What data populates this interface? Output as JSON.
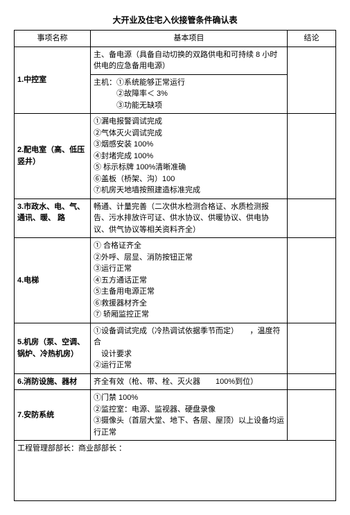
{
  "title": "大开业及住宅入伙接管条件确认表",
  "headers": {
    "col1": "事项名称",
    "col2": "基本项目",
    "col3": "结论"
  },
  "rows": [
    {
      "name": "1.中控室",
      "bold": true,
      "cells": [
        "主、备电源（具备自动切换的双路供电和可持续 8 小时供电的应急备用电源）",
        "主机：①系统能够正常运行\n　　　②故障率＜ 3%\n　　　③功能无缺项"
      ]
    },
    {
      "name": "2.配电室（高、低压 竖井）",
      "bold": true,
      "cells": [
        "①漏电报警调试完成\n②气体灭火调试完成\n③烟感安装 100%\n④封堵完成 100%\n⑤ 标示标牌 100%清晰准确\n⑥盖板（桥架、沟）100\n⑦机房天地墙按照建造标准完成"
      ]
    },
    {
      "name": "3.市政水、电、气、通讯、暖、 路",
      "bold": true,
      "cells": [
        "畅通、计量完善（二次供水检测合格证、水质检测报 告、污水排放许可证、供水协议、供暖协议、供电协 议、供气协议等相关资料齐全）"
      ]
    },
    {
      "name": "4.电梯",
      "bold": true,
      "cells": [
        "① 合格证齐全\n②外呼、层显、消防按钮正常\n③运行正常\n④五方通话正常\n⑤主备用电源正常\n⑥救援器材齐全\n⑦ 轿厢监控正常"
      ]
    },
    {
      "name": "5.机房（泵、空调、锅炉、冷热机房）",
      "bold": true,
      "cells": [
        "①设备调试完成（冷热调试依据季节而定）　　，温度符合\n　设计要求\n②运行正常"
      ]
    },
    {
      "name": "6.消防设施、器材",
      "bold": true,
      "cells": [
        "齐全有效（枪、带、栓、灭火器　　100%到位）"
      ]
    },
    {
      "name": "7.安防系统",
      "bold": true,
      "cells": [
        "①门禁 100%\n②监控室：电源、监视器、硬盘录像\n③摄像头（首层大堂、地下、各层、屋顶）以上设备均运行正常"
      ]
    }
  ],
  "footer": "工程管理部部长：商业部部长 ："
}
